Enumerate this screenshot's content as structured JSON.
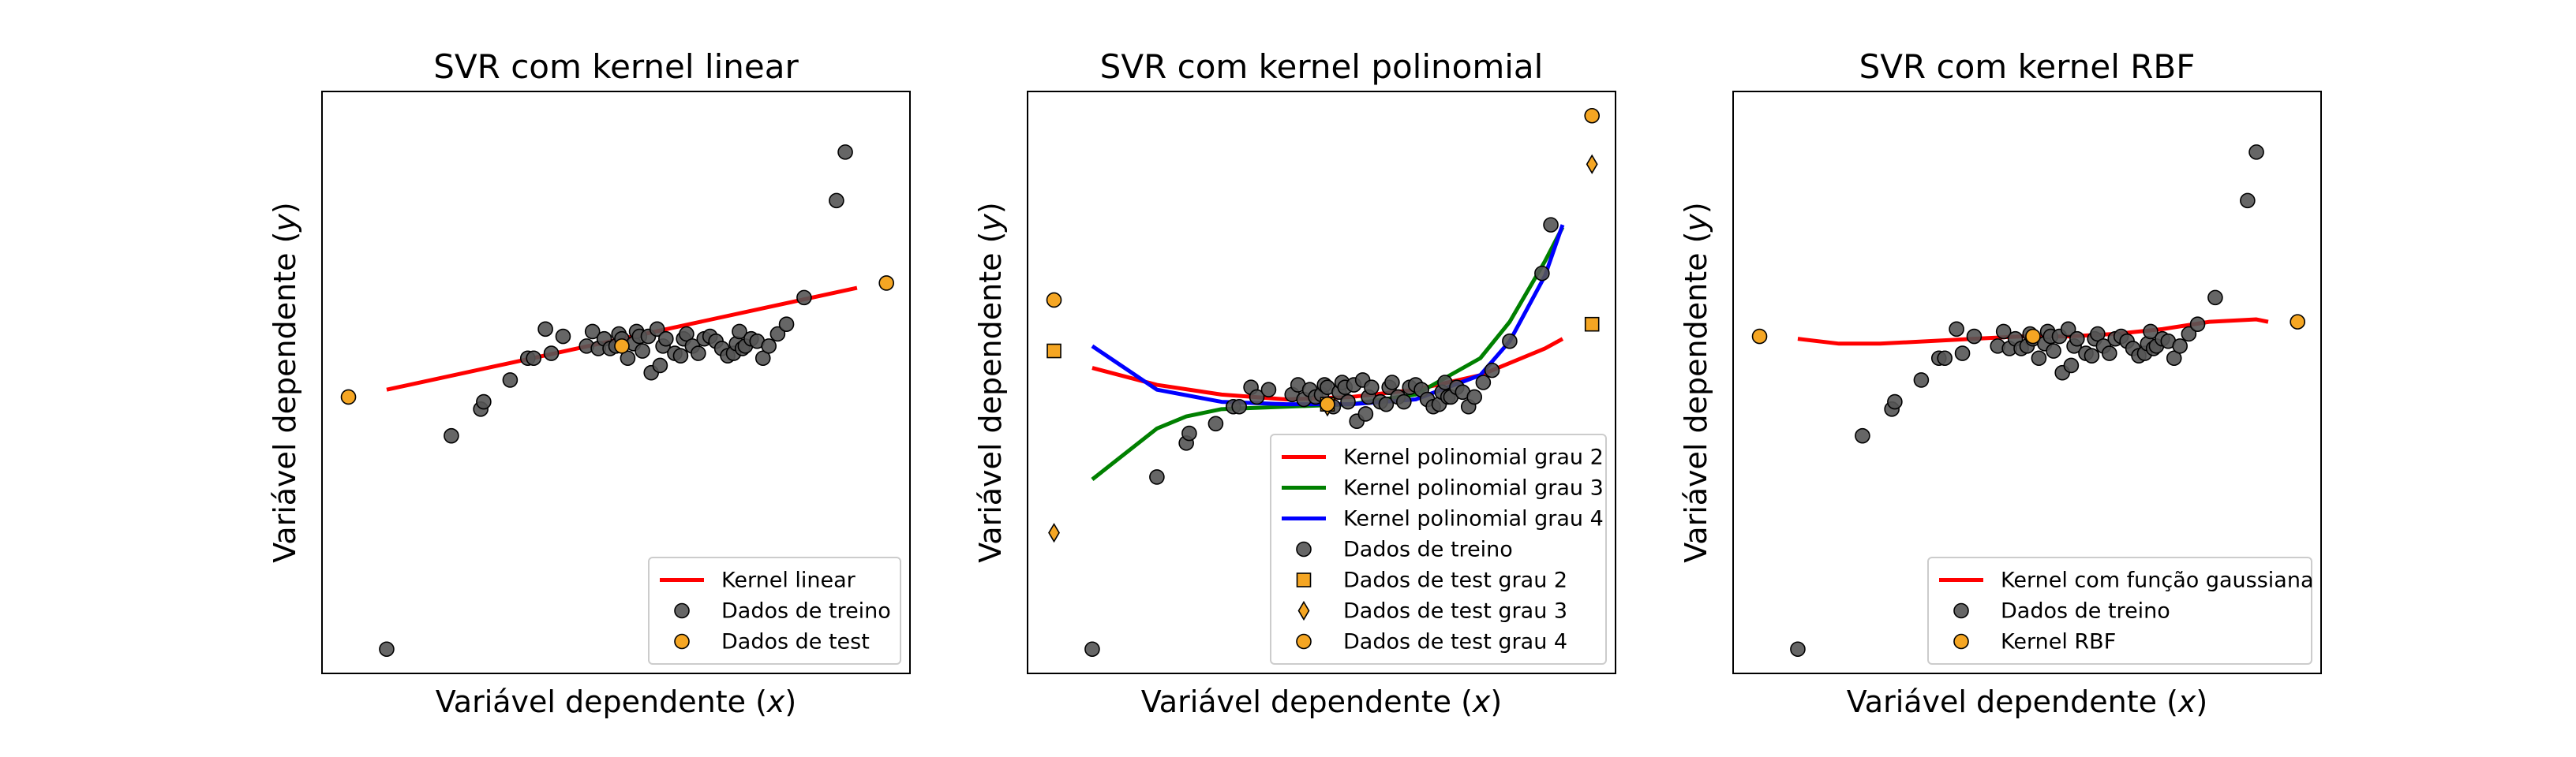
{
  "chart_data": [
    {
      "type": "scatter",
      "title": "SVR com kernel linear",
      "xlabel_prefix": "Variável dependente (",
      "xlabel_var": "x",
      "xlabel_suffix": ")",
      "ylabel_prefix": "Variável dependente (",
      "ylabel_var": "y",
      "ylabel_suffix": ")",
      "xlim": [
        0,
        10
      ],
      "ylim": [
        -5,
        7
      ],
      "grid": false,
      "ticks_visible": false,
      "legend_position": "lower-right",
      "series": [
        {
          "name": "Kernel linear",
          "kind": "line",
          "color": "#ff0000",
          "x": [
            1.1,
            9.1
          ],
          "y": [
            0.85,
            2.95
          ]
        },
        {
          "name": "Dados de treino",
          "kind": "scatter",
          "marker": "circle",
          "color": "#555555",
          "x": [
            1.1,
            2.2,
            2.7,
            2.75,
            3.2,
            3.5,
            3.6,
            3.8,
            3.9,
            4.1,
            4.5,
            4.6,
            4.7,
            4.8,
            4.9,
            5.0,
            5.05,
            5.1,
            5.2,
            5.3,
            5.35,
            5.4,
            5.45,
            5.55,
            5.6,
            5.7,
            5.75,
            5.8,
            5.85,
            6.0,
            6.1,
            6.15,
            6.2,
            6.3,
            6.4,
            6.5,
            6.6,
            6.7,
            6.8,
            6.9,
            7.0,
            7.05,
            7.1,
            7.15,
            7.2,
            7.3,
            7.4,
            7.5,
            7.6,
            7.75,
            7.9,
            8.2,
            8.75,
            8.9
          ],
          "y": [
            -4.5,
            -0.1,
            0.45,
            0.6,
            1.05,
            1.5,
            1.5,
            2.1,
            1.6,
            1.95,
            1.75,
            2.05,
            1.7,
            1.9,
            1.7,
            1.75,
            2.0,
            1.9,
            1.5,
            1.8,
            2.05,
            1.95,
            1.65,
            1.95,
            1.2,
            2.1,
            1.35,
            1.75,
            1.9,
            1.6,
            1.55,
            1.9,
            2.0,
            1.75,
            1.6,
            1.9,
            1.95,
            1.85,
            1.7,
            1.55,
            1.6,
            1.8,
            2.05,
            1.7,
            1.75,
            1.9,
            1.85,
            1.5,
            1.75,
            2.0,
            2.2,
            2.75,
            4.75,
            5.75
          ]
        },
        {
          "name": "Dados de test",
          "kind": "scatter",
          "marker": "circle",
          "color": "#f5a623",
          "x": [
            0.45,
            5.1,
            9.6
          ],
          "y": [
            0.7,
            1.75,
            3.05
          ]
        }
      ]
    },
    {
      "type": "scatter",
      "title": "SVR com kernel polinomial",
      "xlabel_prefix": "Variável dependente (",
      "xlabel_var": "x",
      "xlabel_suffix": ")",
      "ylabel_prefix": "Variável dependente (",
      "ylabel_var": "y",
      "ylabel_suffix": ")",
      "xlim": [
        0,
        10
      ],
      "ylim": [
        -5,
        7
      ],
      "grid": false,
      "ticks_visible": false,
      "legend_position": "lower-right",
      "series": [
        {
          "name": "Kernel polinomial grau 2",
          "kind": "line",
          "color": "#ff0000",
          "x": [
            1.1,
            2.2,
            3.3,
            4.4,
            5.5,
            6.6,
            7.7,
            8.8,
            9.1
          ],
          "y": [
            1.3,
            0.95,
            0.75,
            0.65,
            0.7,
            0.85,
            1.15,
            1.7,
            1.9
          ]
        },
        {
          "name": "Kernel polinomial grau 3",
          "kind": "line",
          "color": "#008000",
          "x": [
            1.1,
            2.2,
            2.7,
            3.3,
            4.4,
            5.5,
            6.6,
            7.7,
            8.2,
            8.8,
            9.1
          ],
          "y": [
            -1.0,
            0.05,
            0.3,
            0.45,
            0.5,
            0.55,
            0.75,
            1.5,
            2.25,
            3.5,
            4.2
          ]
        },
        {
          "name": "Kernel polinomial grau 4",
          "kind": "line",
          "color": "#0000ff",
          "x": [
            1.1,
            2.2,
            3.3,
            4.4,
            5.5,
            6.6,
            7.7,
            8.2,
            8.8,
            9.1
          ],
          "y": [
            1.75,
            0.85,
            0.6,
            0.55,
            0.55,
            0.65,
            1.15,
            1.85,
            3.2,
            4.25
          ]
        },
        {
          "name": "Dados de treino",
          "kind": "scatter",
          "marker": "circle",
          "color": "#555555",
          "x": [
            1.1,
            2.2,
            2.7,
            2.75,
            3.2,
            3.5,
            3.6,
            3.8,
            3.9,
            4.1,
            4.5,
            4.6,
            4.7,
            4.8,
            4.9,
            5.0,
            5.05,
            5.1,
            5.2,
            5.3,
            5.35,
            5.4,
            5.45,
            5.55,
            5.6,
            5.7,
            5.75,
            5.8,
            5.85,
            6.0,
            6.1,
            6.15,
            6.2,
            6.3,
            6.4,
            6.5,
            6.6,
            6.7,
            6.8,
            6.9,
            7.0,
            7.05,
            7.1,
            7.15,
            7.2,
            7.3,
            7.4,
            7.5,
            7.6,
            7.75,
            7.9,
            8.2,
            8.75,
            8.9
          ],
          "y": [
            -4.5,
            -0.95,
            -0.25,
            -0.05,
            0.15,
            0.5,
            0.5,
            0.9,
            0.7,
            0.85,
            0.75,
            0.95,
            0.65,
            0.85,
            0.7,
            0.75,
            0.95,
            0.9,
            0.5,
            0.8,
            1.0,
            0.9,
            0.6,
            0.95,
            0.2,
            1.05,
            0.35,
            0.7,
            0.9,
            0.6,
            0.55,
            0.9,
            1.0,
            0.7,
            0.6,
            0.9,
            0.95,
            0.85,
            0.65,
            0.5,
            0.55,
            0.8,
            1.0,
            0.7,
            0.7,
            0.9,
            0.8,
            0.5,
            0.7,
            1.0,
            1.25,
            1.85,
            3.25,
            4.25
          ]
        },
        {
          "name": "Dados de test grau 2",
          "kind": "scatter",
          "marker": "square",
          "color": "#f5a623",
          "x": [
            0.45,
            5.1,
            9.6
          ],
          "y": [
            1.65,
            0.55,
            2.2
          ]
        },
        {
          "name": "Dados de test grau 3",
          "kind": "scatter",
          "marker": "diamond",
          "color": "#f5a623",
          "x": [
            0.45,
            5.1,
            9.6
          ],
          "y": [
            -2.1,
            0.5,
            5.5
          ]
        },
        {
          "name": "Dados de test grau 4",
          "kind": "scatter",
          "marker": "circle",
          "color": "#f5a623",
          "x": [
            0.45,
            5.1,
            9.6
          ],
          "y": [
            2.7,
            0.55,
            6.5
          ]
        }
      ]
    },
    {
      "type": "scatter",
      "title": "SVR com kernel RBF",
      "xlabel_prefix": "Variável dependente (",
      "xlabel_var": "x",
      "xlabel_suffix": ")",
      "ylabel_prefix": "Variável dependente (",
      "ylabel_var": "y",
      "ylabel_suffix": ")",
      "xlim": [
        0,
        10
      ],
      "ylim": [
        -5,
        7
      ],
      "grid": false,
      "ticks_visible": false,
      "legend_position": "lower-right",
      "series": [
        {
          "name": "Kernel com função gaussiana",
          "kind": "line",
          "color": "#ff0000",
          "x": [
            1.1,
            1.8,
            2.5,
            3.3,
            4.1,
            4.9,
            5.7,
            6.5,
            7.3,
            8.1,
            8.9,
            9.1
          ],
          "y": [
            1.9,
            1.8,
            1.8,
            1.85,
            1.9,
            1.95,
            1.95,
            2.0,
            2.1,
            2.25,
            2.3,
            2.25
          ]
        },
        {
          "name": "Dados de treino",
          "kind": "scatter",
          "marker": "circle",
          "color": "#555555",
          "x": [
            1.1,
            2.2,
            2.7,
            2.75,
            3.2,
            3.5,
            3.6,
            3.8,
            3.9,
            4.1,
            4.5,
            4.6,
            4.7,
            4.8,
            4.9,
            5.0,
            5.05,
            5.1,
            5.2,
            5.3,
            5.35,
            5.4,
            5.45,
            5.55,
            5.6,
            5.7,
            5.75,
            5.8,
            5.85,
            6.0,
            6.1,
            6.15,
            6.2,
            6.3,
            6.4,
            6.5,
            6.6,
            6.7,
            6.8,
            6.9,
            7.0,
            7.05,
            7.1,
            7.15,
            7.2,
            7.3,
            7.4,
            7.5,
            7.6,
            7.75,
            7.9,
            8.2,
            8.75,
            8.9
          ],
          "y": [
            -4.5,
            -0.1,
            0.45,
            0.6,
            1.05,
            1.5,
            1.5,
            2.1,
            1.6,
            1.95,
            1.75,
            2.05,
            1.7,
            1.9,
            1.7,
            1.75,
            2.0,
            1.9,
            1.5,
            1.8,
            2.05,
            1.95,
            1.65,
            1.95,
            1.2,
            2.1,
            1.35,
            1.75,
            1.9,
            1.6,
            1.55,
            1.9,
            2.0,
            1.75,
            1.6,
            1.9,
            1.95,
            1.85,
            1.7,
            1.55,
            1.6,
            1.8,
            2.05,
            1.7,
            1.75,
            1.9,
            1.85,
            1.5,
            1.75,
            2.0,
            2.2,
            2.75,
            4.75,
            5.75
          ]
        },
        {
          "name": "Kernel RBF",
          "kind": "scatter",
          "marker": "circle",
          "color": "#f5a623",
          "x": [
            0.45,
            5.1,
            9.6
          ],
          "y": [
            1.95,
            1.95,
            2.25
          ]
        }
      ]
    }
  ]
}
